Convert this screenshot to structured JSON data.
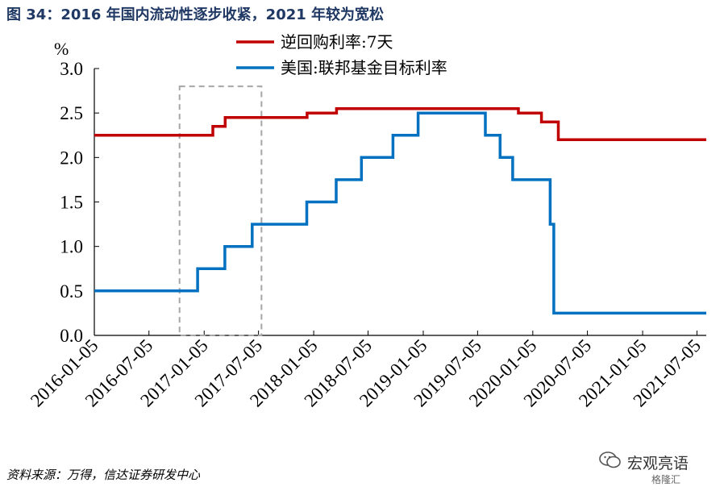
{
  "title": "图 34：2016 年国内流动性逐步收紧，2021 年较为宽松",
  "source": "资料来源：万得，信达证券研发中心",
  "watermark": {
    "name": "宏观亮语",
    "sub": "格隆汇"
  },
  "chart_data": {
    "type": "line",
    "title": "图 34：2016 年国内流动性逐步收紧，2021 年较为宽松",
    "ylabel": "%",
    "xlabel": "",
    "ylim": [
      0,
      3.0
    ],
    "xlim": [
      "2016-01-05",
      "2021-08-05"
    ],
    "y_ticks": [
      "0.0",
      "0.5",
      "1.0",
      "1.5",
      "2.0",
      "2.5",
      "3.0"
    ],
    "x_ticks": [
      "2016-01-05",
      "2016-07-05",
      "2017-01-05",
      "2017-07-05",
      "2018-01-05",
      "2018-07-05",
      "2019-01-05",
      "2019-07-05",
      "2020-01-05",
      "2020-07-05",
      "2021-01-05",
      "2021-07-05"
    ],
    "legend_position": "top",
    "highlight_box": {
      "x_range": [
        "2016-10-15",
        "2017-07-15"
      ],
      "y_range": [
        0,
        2.8
      ],
      "style": "dashed"
    },
    "series": [
      {
        "name": "逆回购利率:7天",
        "color": "#c00000",
        "points": [
          [
            "2016-01-05",
            2.25
          ],
          [
            "2017-02-03",
            2.25
          ],
          [
            "2017-02-03",
            2.35
          ],
          [
            "2017-03-16",
            2.35
          ],
          [
            "2017-03-16",
            2.45
          ],
          [
            "2017-12-14",
            2.45
          ],
          [
            "2017-12-14",
            2.5
          ],
          [
            "2018-03-22",
            2.5
          ],
          [
            "2018-03-22",
            2.55
          ],
          [
            "2019-11-18",
            2.55
          ],
          [
            "2019-11-18",
            2.5
          ],
          [
            "2020-02-03",
            2.5
          ],
          [
            "2020-02-03",
            2.4
          ],
          [
            "2020-03-30",
            2.4
          ],
          [
            "2020-03-30",
            2.2
          ],
          [
            "2021-08-05",
            2.2
          ]
        ]
      },
      {
        "name": "美国:联邦基金目标利率",
        "color": "#0070c0",
        "points": [
          [
            "2016-01-05",
            0.5
          ],
          [
            "2016-12-14",
            0.5
          ],
          [
            "2016-12-14",
            0.75
          ],
          [
            "2017-03-15",
            0.75
          ],
          [
            "2017-03-15",
            1.0
          ],
          [
            "2017-06-14",
            1.0
          ],
          [
            "2017-06-14",
            1.25
          ],
          [
            "2017-12-13",
            1.25
          ],
          [
            "2017-12-13",
            1.5
          ],
          [
            "2018-03-21",
            1.5
          ],
          [
            "2018-03-21",
            1.75
          ],
          [
            "2018-06-13",
            1.75
          ],
          [
            "2018-06-13",
            2.0
          ],
          [
            "2018-09-26",
            2.0
          ],
          [
            "2018-09-26",
            2.25
          ],
          [
            "2018-12-19",
            2.25
          ],
          [
            "2018-12-19",
            2.5
          ],
          [
            "2019-07-31",
            2.5
          ],
          [
            "2019-07-31",
            2.25
          ],
          [
            "2019-09-18",
            2.25
          ],
          [
            "2019-09-18",
            2.0
          ],
          [
            "2019-10-30",
            2.0
          ],
          [
            "2019-10-30",
            1.75
          ],
          [
            "2020-03-03",
            1.75
          ],
          [
            "2020-03-03",
            1.25
          ],
          [
            "2020-03-15",
            1.25
          ],
          [
            "2020-03-15",
            0.25
          ],
          [
            "2021-08-05",
            0.25
          ]
        ]
      }
    ]
  }
}
